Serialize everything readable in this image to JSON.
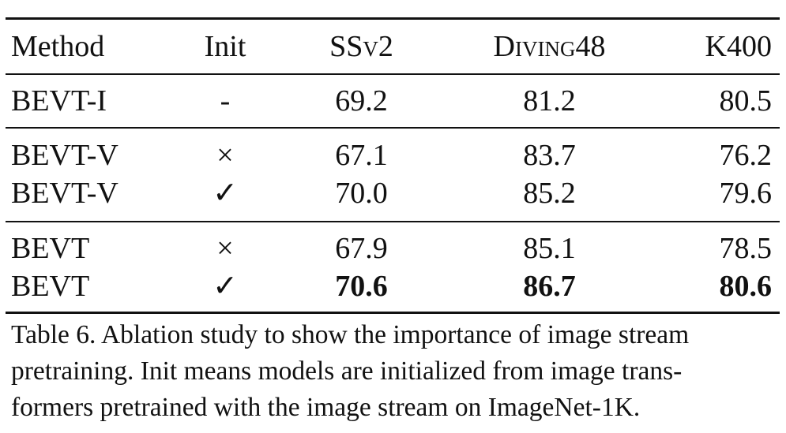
{
  "table": {
    "headers": {
      "method": "Method",
      "init": "Init",
      "ssv2": "SSv2",
      "diving48": "Diving48",
      "k400": "K400"
    },
    "rows": [
      {
        "method": "BEVT-I",
        "init": "-",
        "ssv2": "69.2",
        "diving48": "81.2",
        "k400": "80.5"
      },
      {
        "method": "BEVT-V",
        "init": "×",
        "ssv2": "67.1",
        "diving48": "83.7",
        "k400": "76.2"
      },
      {
        "method": "BEVT-V",
        "init": "✓",
        "ssv2": "70.0",
        "diving48": "85.2",
        "k400": "79.6"
      },
      {
        "method": "BEVT",
        "init": "×",
        "ssv2": "67.9",
        "diving48": "85.1",
        "k400": "78.5"
      },
      {
        "method": "BEVT",
        "init": "✓",
        "ssv2": "70.6",
        "diving48": "86.7",
        "k400": "80.6"
      }
    ]
  },
  "caption": {
    "line1": "Table 6.  Ablation study to show the importance of image stream",
    "line2": "pretraining.  Init means models are initialized from image trans-",
    "line3": "formers pretrained with the image stream on ImageNet-1K."
  }
}
